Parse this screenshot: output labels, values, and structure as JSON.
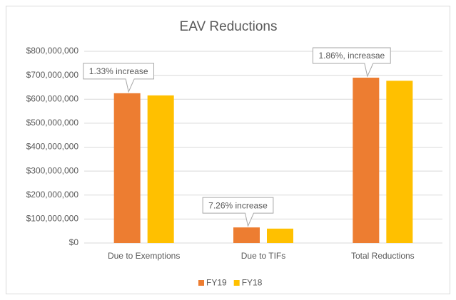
{
  "chart_data": {
    "type": "bar",
    "title": "EAV Reductions",
    "categories": [
      "Due to Exemptions",
      "Due to TIFs",
      "Total Reductions"
    ],
    "series": [
      {
        "name": "FY19",
        "color": "#ed7d31",
        "values": [
          625000000,
          65000000,
          690000000
        ]
      },
      {
        "name": "FY18",
        "color": "#ffc000",
        "values": [
          616000000,
          60000000,
          677000000
        ]
      }
    ],
    "ylim": [
      0,
      800000000
    ],
    "yticks": [
      {
        "value": 0,
        "label": "$0"
      },
      {
        "value": 100000000,
        "label": "$100,000,000"
      },
      {
        "value": 200000000,
        "label": "$200,000,000"
      },
      {
        "value": 300000000,
        "label": "$300,000,000"
      },
      {
        "value": 400000000,
        "label": "$400,000,000"
      },
      {
        "value": 500000000,
        "label": "$500,000,000"
      },
      {
        "value": 600000000,
        "label": "$600,000,000"
      },
      {
        "value": 700000000,
        "label": "$700,000,000"
      },
      {
        "value": 800000000,
        "label": "$800,000,000"
      }
    ],
    "grid": true,
    "legend": "bottom",
    "annotations": [
      "1.33% increase",
      "7.26% increase",
      "1.86%, increasae"
    ]
  }
}
